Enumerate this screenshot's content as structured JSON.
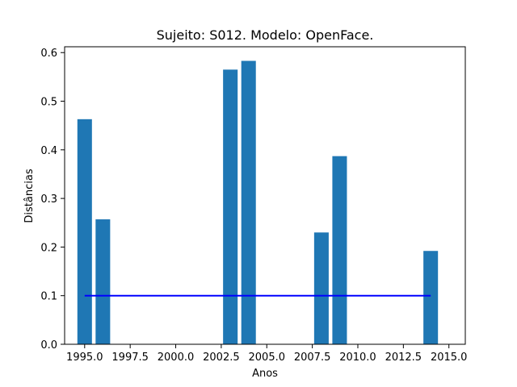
{
  "chart_data": {
    "type": "bar",
    "title": "Sujeito: S012. Modelo: OpenFace.",
    "xlabel": "Anos",
    "ylabel": "Distâncias",
    "xlim": [
      1993.9,
      2015.9
    ],
    "ylim": [
      0,
      0.612
    ],
    "x_ticks": [
      1995.0,
      1997.5,
      2000.0,
      2002.5,
      2005.0,
      2007.5,
      2010.0,
      2012.5,
      2015.0
    ],
    "x_tick_labels": [
      "1995.0",
      "1997.5",
      "2000.0",
      "2002.5",
      "2005.0",
      "2007.5",
      "2010.0",
      "2012.5",
      "2015.0"
    ],
    "y_ticks": [
      0.0,
      0.1,
      0.2,
      0.3,
      0.4,
      0.5,
      0.6
    ],
    "y_tick_labels": [
      "0.0",
      "0.1",
      "0.2",
      "0.3",
      "0.4",
      "0.5",
      "0.6"
    ],
    "bar_width": 0.8,
    "bar_color": "#1f77b4",
    "x": [
      1995,
      1996,
      2003,
      2004,
      2008,
      2009,
      2014
    ],
    "values": [
      0.463,
      0.257,
      0.565,
      0.583,
      0.23,
      0.387,
      0.192
    ],
    "threshold": {
      "y": 0.1,
      "x_start": 1995,
      "x_end": 2014,
      "color": "#0000ff"
    },
    "grid": false
  }
}
